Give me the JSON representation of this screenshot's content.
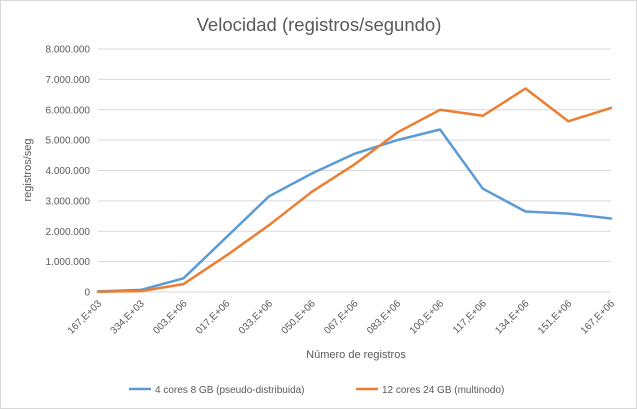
{
  "chart_data": {
    "type": "line",
    "title": "Velocidad (registros/segundo)",
    "xlabel": "Número de registros",
    "ylabel": "registros/seg",
    "categories": [
      "167,E+03",
      "334,E+03",
      "003,E+06",
      "017,E+06",
      "033,E+06",
      "050,E+06",
      "067,E+06",
      "083,E+06",
      "100,E+06",
      "117,E+06",
      "134,E+06",
      "151,E+06",
      "167,E+06"
    ],
    "y_ticks": [
      "0",
      "1.000.000",
      "2.000.000",
      "3.000.000",
      "4.000.000",
      "5.000.000",
      "6.000.000",
      "7.000.000",
      "8.000.000"
    ],
    "ylim": [
      0,
      8000000
    ],
    "grid": true,
    "legend_position": "bottom",
    "series": [
      {
        "name": "4 cores 8 GB (pseudo-distribuida)",
        "color": "#5b9bd5",
        "values": [
          20000,
          70000,
          450000,
          1800000,
          3150000,
          3900000,
          4550000,
          5000000,
          5350000,
          3400000,
          2650000,
          2580000,
          2420000
        ]
      },
      {
        "name": "12 cores 24 GB (multinodo)",
        "color": "#ed7d31",
        "values": [
          10000,
          30000,
          260000,
          1200000,
          2200000,
          3300000,
          4200000,
          5250000,
          6000000,
          5800000,
          6700000,
          5620000,
          6060000
        ]
      }
    ]
  }
}
